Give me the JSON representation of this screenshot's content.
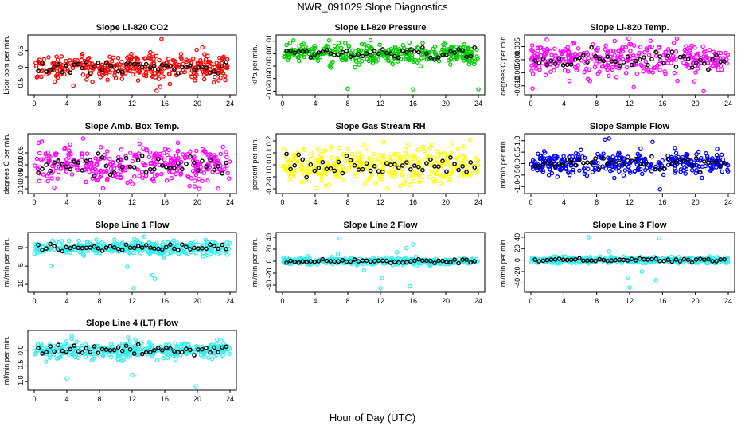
{
  "figure": {
    "title": "NWR_091029  Slope Diagnostics",
    "xlabel": "Hour of Day (UTC)"
  },
  "colors": {
    "reference_series": "#000000"
  },
  "chart_data": [
    {
      "type": "scatter",
      "title": "Slope Li-820 CO2",
      "ylabel": "Licor ppm per min.",
      "color": "#ff0000",
      "xlim": [
        0,
        24
      ],
      "xticks": [
        0,
        4,
        8,
        12,
        16,
        20,
        24
      ],
      "ylim": [
        -0.75,
        0.9
      ],
      "yticks": [
        -0.5,
        0,
        0.5
      ],
      "ytick_labels": [
        "-0.5",
        "0",
        "0.5"
      ],
      "spread": 0.27,
      "outliers": [
        [
          15.6,
          0.85
        ],
        [
          15.0,
          -0.7
        ],
        [
          4.8,
          -0.55
        ],
        [
          20.6,
          0.6
        ]
      ]
    },
    {
      "type": "scatter",
      "title": "Slope Li-820 Pressure",
      "ylabel": "kPa per min.",
      "color": "#00cc00",
      "xlim": [
        0,
        24
      ],
      "xticks": [
        0,
        4,
        8,
        12,
        16,
        20,
        24
      ],
      "ylim": [
        -0.031,
        0.013
      ],
      "yticks": [
        -0.03,
        -0.02,
        -0.01,
        0.0,
        0.01
      ],
      "ytick_labels": [
        "-0.03",
        "-0.02",
        "-0.01",
        "0.00",
        "0.01"
      ],
      "spread": 0.0055,
      "outliers": [
        [
          16.0,
          -0.0285
        ],
        [
          24.0,
          -0.0285
        ],
        [
          8.0,
          -0.028
        ]
      ]
    },
    {
      "type": "scatter",
      "title": "Slope Li-820 Temp.",
      "ylabel": "degrees C per min.",
      "color": "#ff00ff",
      "xlim": [
        0,
        24
      ],
      "xticks": [
        0,
        4,
        8,
        12,
        16,
        20,
        24
      ],
      "ylim": [
        -0.0125,
        0.0085
      ],
      "yticks": [
        -0.01,
        -0.005,
        0.0,
        0.005
      ],
      "ytick_labels": [
        "-0.010",
        "-0.005",
        "0.000",
        "0.005"
      ],
      "spread": 0.0045,
      "outliers": [
        [
          0.2,
          -0.011
        ],
        [
          12.5,
          -0.0105
        ],
        [
          21.0,
          -0.012
        ]
      ]
    },
    {
      "type": "scatter",
      "title": "Slope Amb. Box Temp.",
      "ylabel": "degrees C per min.",
      "color": "#ff00ff",
      "xlim": [
        0,
        24
      ],
      "xticks": [
        0,
        4,
        8,
        12,
        16,
        20,
        24
      ],
      "ylim": [
        -0.11,
        0.12
      ],
      "yticks": [
        -0.1,
        -0.05,
        0.0,
        0.05
      ],
      "ytick_labels": [
        "-0.10",
        "-0.05",
        "0.00",
        "0.05"
      ],
      "spread": 0.055,
      "outliers": [
        [
          20.2,
          -0.1
        ],
        [
          6.0,
          0.11
        ]
      ]
    },
    {
      "type": "scatter",
      "title": "Slope Gas Stream RH",
      "ylabel": "percent per min.",
      "color": "#ffff00",
      "xlim": [
        0,
        24
      ],
      "xticks": [
        0,
        4,
        8,
        12,
        16,
        20,
        24
      ],
      "ylim": [
        -0.22,
        0.24
      ],
      "yticks": [
        -0.2,
        -0.1,
        0.0,
        0.1,
        0.2
      ],
      "ytick_labels": [
        "-0.2",
        "-0.1",
        "0.0",
        "0.1",
        "0.2"
      ],
      "spread": 0.1,
      "outliers": [
        [
          23.0,
          0.21
        ],
        [
          12.8,
          -0.2
        ],
        [
          20.8,
          0.18
        ]
      ]
    },
    {
      "type": "scatter",
      "title": "Slope Sample Flow",
      "ylabel": "ml/min per min.",
      "color": "#0000ff",
      "xlim": [
        0,
        24
      ],
      "xticks": [
        0,
        4,
        8,
        12,
        16,
        20,
        24
      ],
      "ylim": [
        -1.2,
        1.2
      ],
      "yticks": [
        -1.0,
        -0.5,
        0.0,
        0.5,
        1.0
      ],
      "ytick_labels": [
        "-1.0",
        "-0.5",
        "0.0",
        "0.5",
        "1.0"
      ],
      "spread": 0.35,
      "outliers": [
        [
          15.7,
          -1.12
        ],
        [
          9.0,
          1.05
        ],
        [
          14.8,
          0.95
        ],
        [
          9.5,
          1.1
        ]
      ]
    },
    {
      "type": "scatter",
      "title": "Slope Line 1 Flow",
      "ylabel": "ml/min per min.",
      "color": "#33eeee",
      "xlim": [
        0,
        24
      ],
      "xticks": [
        0,
        4,
        8,
        12,
        16,
        20,
        24
      ],
      "ylim": [
        -11.5,
        3.5
      ],
      "yticks": [
        -10,
        -5,
        0
      ],
      "ytick_labels": [
        "-10",
        "-5",
        "0"
      ],
      "spread": 1.3,
      "outliers": [
        [
          12.2,
          -11.0
        ],
        [
          11.4,
          -5.2
        ],
        [
          14.5,
          -7.5
        ],
        [
          14.8,
          -8.5
        ],
        [
          13.5,
          3.0
        ],
        [
          2.0,
          -5.0
        ]
      ]
    },
    {
      "type": "scatter",
      "title": "Slope Line 2 Flow",
      "ylabel": "ml/min per min.",
      "color": "#33eeee",
      "xlim": [
        0,
        24
      ],
      "xticks": [
        0,
        4,
        8,
        12,
        16,
        20,
        24
      ],
      "ylim": [
        -48,
        44
      ],
      "yticks": [
        -40,
        -20,
        0,
        20,
        40
      ],
      "ytick_labels": [
        "-40",
        "-20",
        "0",
        "20",
        "40"
      ],
      "spread": 4,
      "outliers": [
        [
          7.0,
          38
        ],
        [
          12.0,
          -45
        ],
        [
          15.6,
          -42
        ],
        [
          12.2,
          -28
        ],
        [
          6.8,
          12
        ],
        [
          15.2,
          22
        ],
        [
          10.0,
          -15
        ],
        [
          14.0,
          15
        ],
        [
          16.0,
          28
        ]
      ]
    },
    {
      "type": "scatter",
      "title": "Slope Line 3 Flow",
      "ylabel": "ml/min per min.",
      "color": "#33eeee",
      "xlim": [
        0,
        24
      ],
      "xticks": [
        0,
        4,
        8,
        12,
        16,
        20,
        24
      ],
      "ylim": [
        -52,
        44
      ],
      "yticks": [
        -40,
        -20,
        0,
        20,
        40
      ],
      "ytick_labels": [
        "-40",
        "-20",
        "0",
        "20",
        "40"
      ],
      "spread": 4,
      "outliers": [
        [
          7.0,
          40
        ],
        [
          12.0,
          -48
        ],
        [
          15.6,
          38
        ],
        [
          11.8,
          -30
        ],
        [
          15.2,
          -35
        ],
        [
          9.5,
          15
        ],
        [
          13.5,
          -20
        ]
      ]
    },
    {
      "type": "scatter",
      "title": "Slope Line 4 (LT) Flow",
      "ylabel": "ml/min per min.",
      "color": "#33eeee",
      "xlim": [
        0,
        24
      ],
      "xticks": [
        0,
        4,
        8,
        12,
        16,
        20,
        24
      ],
      "ylim": [
        -1.2,
        0.55
      ],
      "yticks": [
        -1.0,
        -0.5,
        0.0
      ],
      "ytick_labels": [
        "-1.0",
        "-0.5",
        "0.0"
      ],
      "spread": 0.18,
      "outliers": [
        [
          19.8,
          -1.15
        ],
        [
          4.0,
          -0.9
        ],
        [
          12.0,
          -0.8
        ],
        [
          4.6,
          0.45
        ],
        [
          11.5,
          0.4
        ]
      ]
    }
  ]
}
